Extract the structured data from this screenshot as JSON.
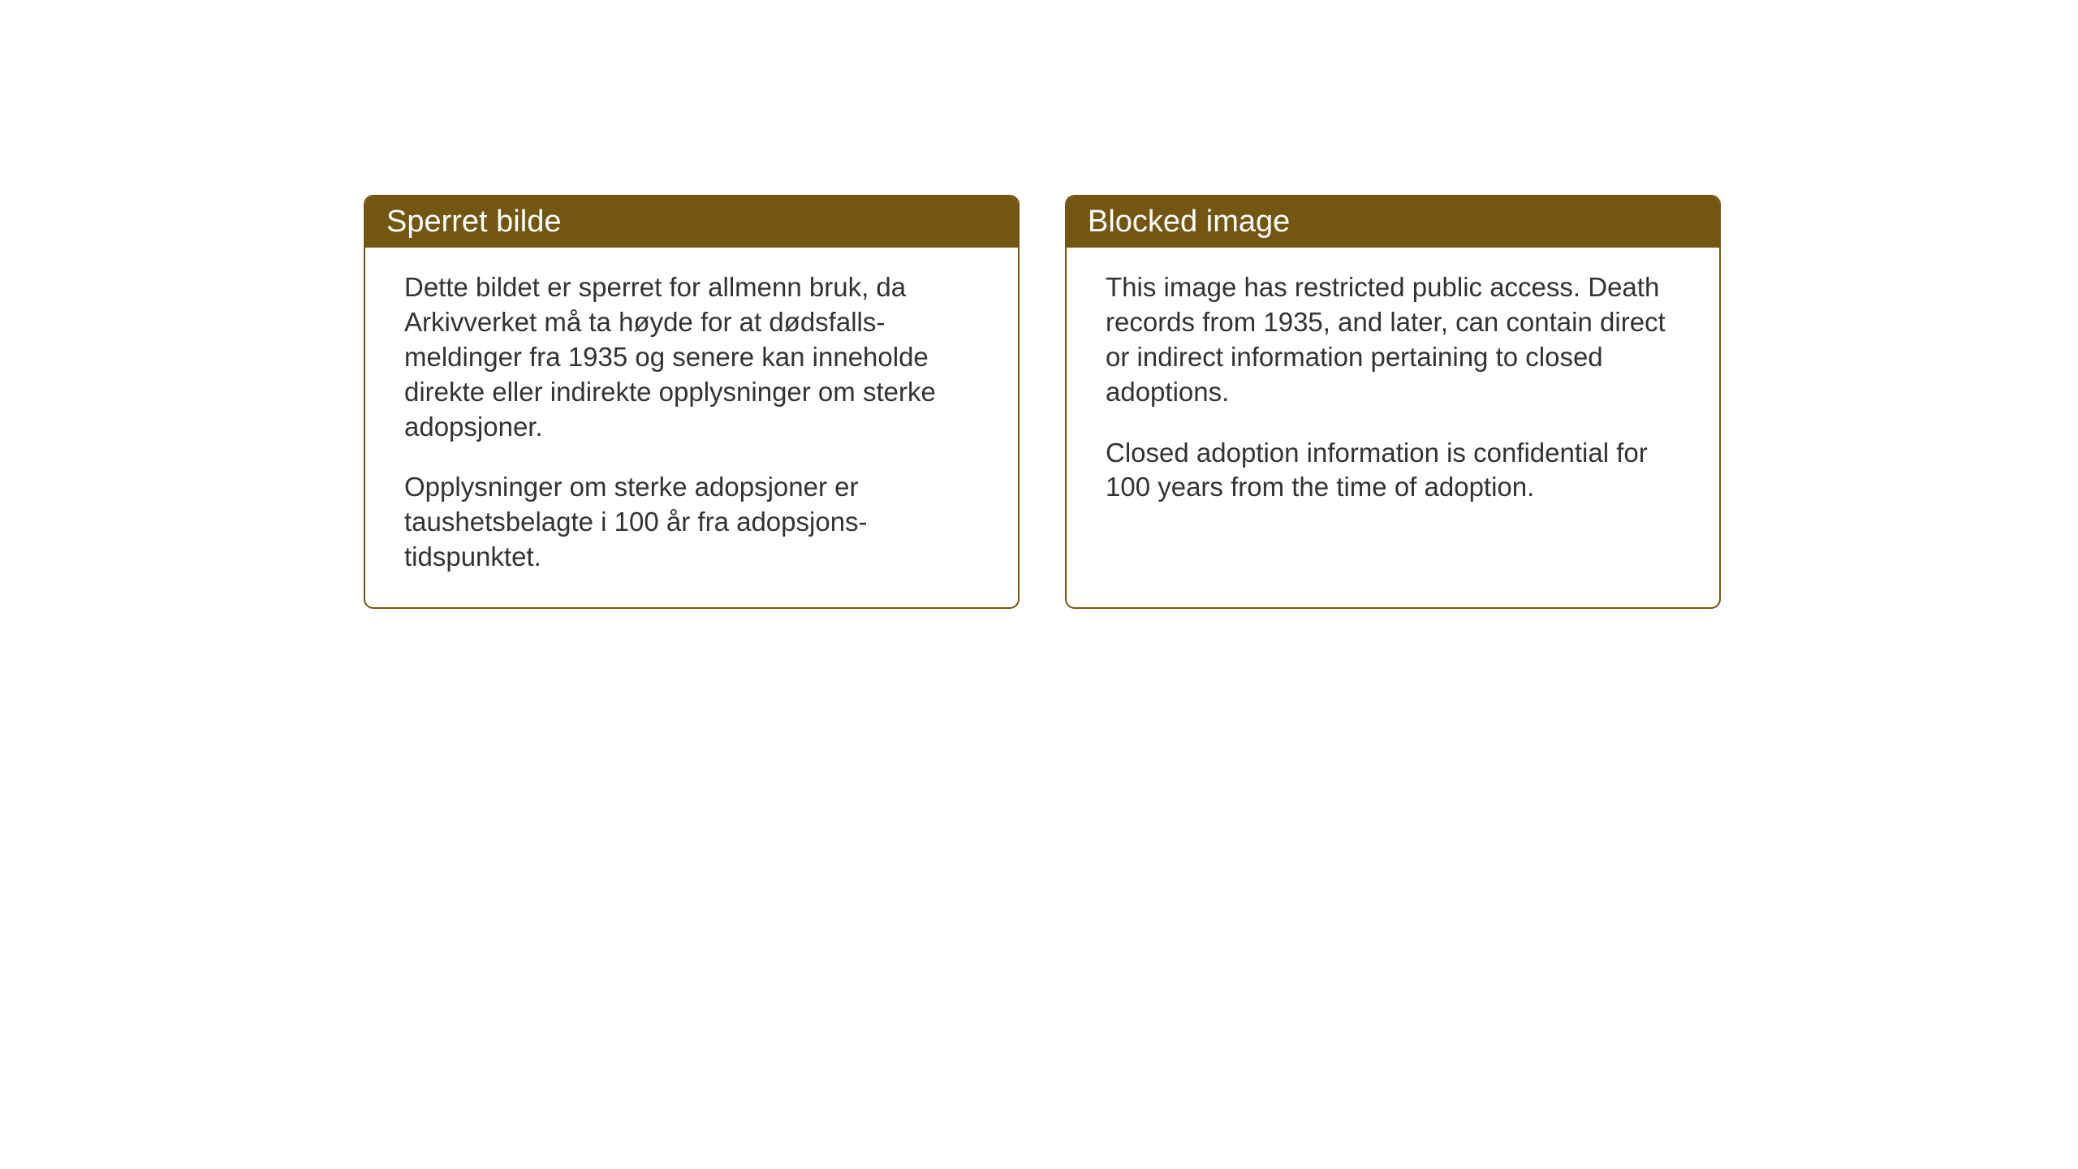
{
  "layout": {
    "background_color": "#ffffff",
    "box_border_color": "#735612",
    "header_background_color": "#735612",
    "header_text_color": "#ffffff",
    "body_text_color": "#333333",
    "header_fontsize": 38,
    "body_fontsize": 33,
    "border_radius": 12,
    "border_width": 2
  },
  "notices": {
    "norwegian": {
      "title": "Sperret bilde",
      "paragraph1": "Dette bildet er sperret for allmenn bruk, da Arkivverket må ta høyde for at dødsfalls-meldinger fra 1935 og senere kan inneholde direkte eller indirekte opplysninger om sterke adopsjoner.",
      "paragraph2": "Opplysninger om sterke adopsjoner er taushetsbelagte i 100 år fra adopsjons-tidspunktet."
    },
    "english": {
      "title": "Blocked image",
      "paragraph1": "This image has restricted public access. Death records from 1935, and later, can contain direct or indirect information pertaining to closed adoptions.",
      "paragraph2": "Closed adoption information is confidential for 100 years from the time of adoption."
    }
  }
}
